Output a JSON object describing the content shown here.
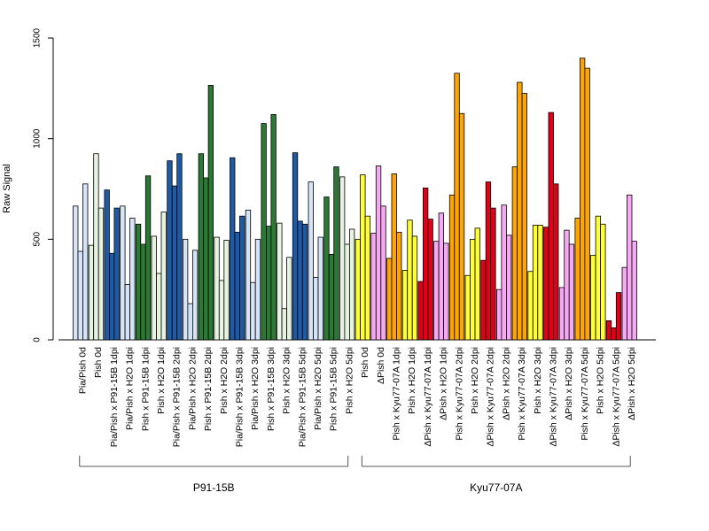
{
  "chart_data": {
    "type": "bar",
    "xlabel": "",
    "ylabel": "Raw Signal",
    "ylim": [
      0,
      1500
    ],
    "yticks": [
      0,
      500,
      1000,
      1500
    ],
    "grid": false,
    "bars_per_category": 3,
    "categories": [
      {
        "label": "Pia/Pish 0d",
        "color": "#d5e4f7",
        "values": [
          665,
          440,
          775
        ]
      },
      {
        "label": "Pish 0d",
        "color": "#e6f3e0",
        "values": [
          470,
          925,
          655
        ]
      },
      {
        "label": "Pia/Pish x P91-15B 1dpi",
        "color": "#1f5aa6",
        "values": [
          745,
          430,
          655
        ]
      },
      {
        "label": "Pia/Pish x H2O 1dpi",
        "color": "#d5e4f7",
        "values": [
          665,
          275,
          605
        ]
      },
      {
        "label": "Pish x P91-15B 1dpi",
        "color": "#2b7a34",
        "values": [
          575,
          475,
          815
        ]
      },
      {
        "label": "Pish x H2O 1dpi",
        "color": "#e6f3e0",
        "values": [
          515,
          330,
          635
        ]
      },
      {
        "label": "Pia/Pish x P91-15B 2dpi",
        "color": "#1f5aa6",
        "values": [
          890,
          765,
          925
        ]
      },
      {
        "label": "Pia/Pish x H2O 2dpi",
        "color": "#d5e4f7",
        "values": [
          500,
          180,
          445
        ]
      },
      {
        "label": "Pish x P91-15B 2dpi",
        "color": "#2b7a34",
        "values": [
          925,
          805,
          1265
        ]
      },
      {
        "label": "Pish x H2O 2dpi",
        "color": "#e6f3e0",
        "values": [
          510,
          295,
          495
        ]
      },
      {
        "label": "Pia/Pish x P91-15B 3dpi",
        "color": "#1f5aa6",
        "values": [
          905,
          535,
          615
        ]
      },
      {
        "label": "Pia/Pish x H2O 3dpi",
        "color": "#d5e4f7",
        "values": [
          645,
          285,
          500
        ]
      },
      {
        "label": "Pish x P91-15B 3dpi",
        "color": "#2b7a34",
        "values": [
          1075,
          565,
          1120
        ]
      },
      {
        "label": "Pish x H2O 3dpi",
        "color": "#e6f3e0",
        "values": [
          580,
          155,
          410
        ]
      },
      {
        "label": "Pia/Pish x P91-15B 5dpi",
        "color": "#1f5aa6",
        "values": [
          930,
          590,
          575
        ]
      },
      {
        "label": "Pia/Pish x H2O 5dpi",
        "color": "#d5e4f7",
        "values": [
          785,
          310,
          510
        ]
      },
      {
        "label": "Pish x P91-15B 5dpi",
        "color": "#2b7a34",
        "values": [
          710,
          425,
          860
        ]
      },
      {
        "label": "Pish x H2O 5dpi",
        "color": "#e6f3e0",
        "values": [
          810,
          475,
          550
        ]
      },
      {
        "label": "Pish 0d",
        "color": "#ffff33",
        "values": [
          500,
          820,
          615
        ]
      },
      {
        "label": "ΔPish 0d",
        "color": "#f6a8f2",
        "values": [
          530,
          865,
          665
        ]
      },
      {
        "label": "Pish x Kyu77-07A 1dpi",
        "color": "#ffa500",
        "values": [
          405,
          825,
          535
        ]
      },
      {
        "label": "Pish x H2O 1dpi",
        "color": "#ffff33",
        "values": [
          345,
          595,
          515
        ]
      },
      {
        "label": "ΔPish x Kyu77-07A 1dpi",
        "color": "#e00018",
        "values": [
          290,
          755,
          600
        ]
      },
      {
        "label": "ΔPish x H2O 1dpi",
        "color": "#f6a8f2",
        "values": [
          490,
          630,
          480
        ]
      },
      {
        "label": "Pish x Kyu77-07A 2dpi",
        "color": "#ffa500",
        "values": [
          720,
          1325,
          1125
        ]
      },
      {
        "label": "Pish x H2O 2dpi",
        "color": "#ffff33",
        "values": [
          320,
          500,
          555
        ]
      },
      {
        "label": "ΔPish x Kyu77-07A 2dpi",
        "color": "#e00018",
        "values": [
          395,
          785,
          655
        ]
      },
      {
        "label": "ΔPish x H2O 2dpi",
        "color": "#f6a8f2",
        "values": [
          250,
          670,
          520
        ]
      },
      {
        "label": "Pish x Kyu77-07A 3dpi",
        "color": "#ffa500",
        "values": [
          860,
          1280,
          1225
        ]
      },
      {
        "label": "Pish x H2O 3dpi",
        "color": "#ffff33",
        "values": [
          340,
          570,
          570
        ]
      },
      {
        "label": "ΔPish x Kyu77-07A 3dpi",
        "color": "#e00018",
        "values": [
          560,
          1130,
          775
        ]
      },
      {
        "label": "ΔPish x H2O 3dpi",
        "color": "#f6a8f2",
        "values": [
          260,
          545,
          475
        ]
      },
      {
        "label": "Pish x Kyu77-07A 5dpi",
        "color": "#ffa500",
        "values": [
          605,
          1400,
          1350
        ]
      },
      {
        "label": "Pish x H2O 5dpi",
        "color": "#ffff33",
        "values": [
          420,
          615,
          575
        ]
      },
      {
        "label": "ΔPish x Kyu77-07A 5dpi",
        "color": "#e00018",
        "values": [
          95,
          60,
          235
        ]
      },
      {
        "label": "ΔPish x H2O 5dpi",
        "color": "#f6a8f2",
        "values": [
          360,
          720,
          490
        ]
      }
    ],
    "groups": [
      {
        "label": "P91-15B",
        "from": 0,
        "to": 17
      },
      {
        "label": "Kyu77-07A",
        "from": 18,
        "to": 35
      }
    ]
  }
}
